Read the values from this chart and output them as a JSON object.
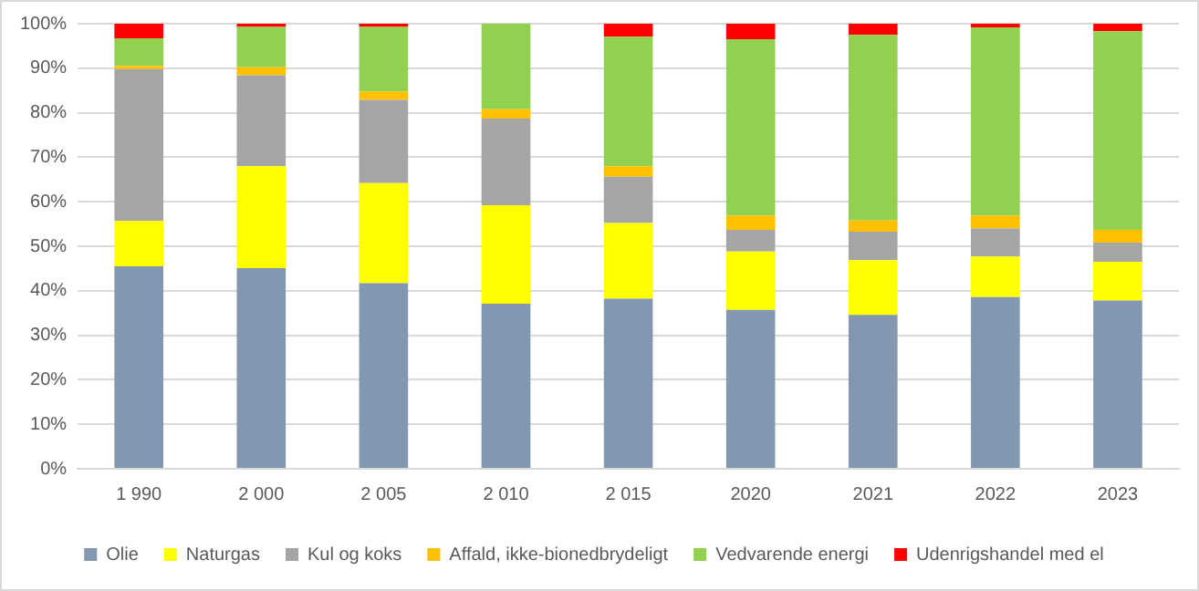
{
  "chart_data": {
    "type": "bar",
    "stacked": true,
    "categories": [
      "1 990",
      "2 000",
      "2 005",
      "2 010",
      "2 015",
      "2020",
      "2021",
      "2022",
      "2023"
    ],
    "series": [
      {
        "name": "Olie",
        "color": "#8497b0",
        "values": [
          45.5,
          45.1,
          41.7,
          37.1,
          38.2,
          35.7,
          34.6,
          38.6,
          37.8
        ]
      },
      {
        "name": "Naturgas",
        "color": "#ffff00",
        "values": [
          10.2,
          22.9,
          22.5,
          22.1,
          17.0,
          13.1,
          12.3,
          9.1,
          8.7
        ]
      },
      {
        "name": "Kul og koks",
        "color": "#a5a5a5",
        "values": [
          34.1,
          20.4,
          18.7,
          19.5,
          10.4,
          4.9,
          6.4,
          6.3,
          4.3
        ]
      },
      {
        "name": "Affald, ikke-bionedbrydeligt",
        "color": "#ffc000",
        "values": [
          0.7,
          1.8,
          1.9,
          2.1,
          2.4,
          3.2,
          2.5,
          2.9,
          2.9
        ]
      },
      {
        "name": "Vedvarende energi",
        "color": "#92d050",
        "values": [
          6.2,
          9.1,
          14.5,
          19.2,
          29.1,
          39.6,
          41.7,
          42.3,
          44.6
        ]
      },
      {
        "name": "Udenrigshandel med el",
        "color": "#ff0000",
        "values": [
          3.3,
          0.7,
          0.7,
          0,
          2.9,
          3.5,
          2.5,
          0.8,
          1.7
        ]
      }
    ],
    "ylim": [
      0,
      100
    ],
    "yticks": [
      {
        "value": 0,
        "label": "0%"
      },
      {
        "value": 10,
        "label": "10%"
      },
      {
        "value": 20,
        "label": "20%"
      },
      {
        "value": 30,
        "label": "30%"
      },
      {
        "value": 40,
        "label": "40%"
      },
      {
        "value": 50,
        "label": "50%"
      },
      {
        "value": 60,
        "label": "60%"
      },
      {
        "value": 70,
        "label": "70%"
      },
      {
        "value": 80,
        "label": "80%"
      },
      {
        "value": 90,
        "label": "90%"
      },
      {
        "value": 100,
        "label": "100%"
      }
    ],
    "grid": "y",
    "legend": "bottom"
  }
}
